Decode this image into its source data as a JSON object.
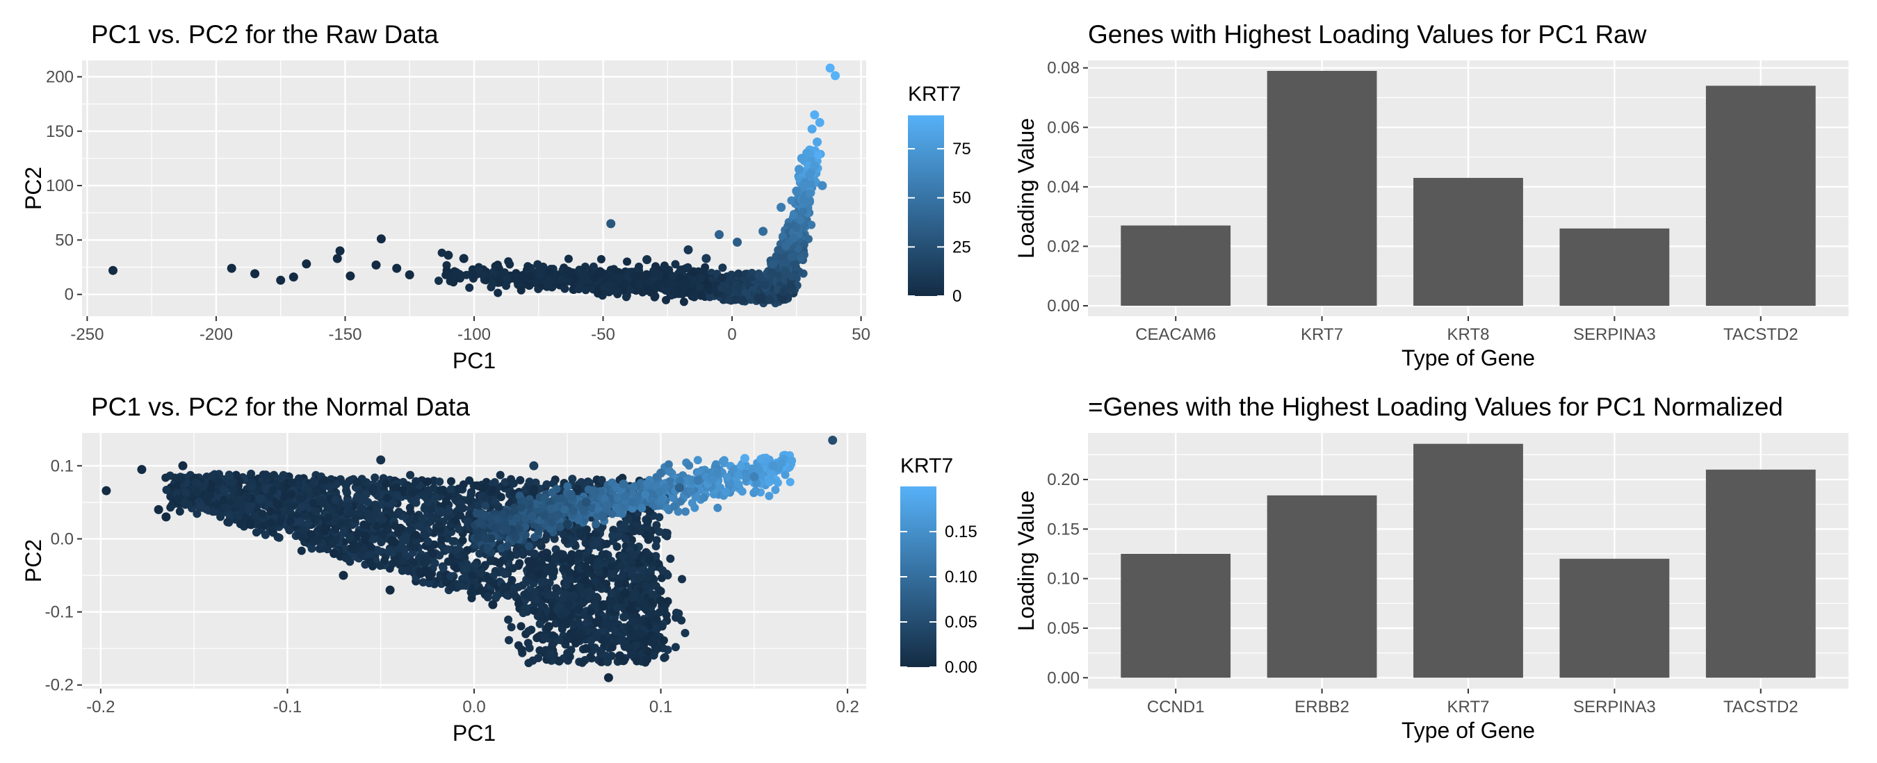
{
  "chart_data": [
    {
      "id": "raw-scatter",
      "type": "scatter",
      "title": "PC1 vs. PC2 for the Raw Data",
      "xlabel": "PC1",
      "ylabel": "PC2",
      "xlim": [
        -252,
        52
      ],
      "ylim": [
        -20,
        215
      ],
      "xticks": [
        -250,
        -200,
        -150,
        -100,
        -50,
        0,
        50
      ],
      "yticks": [
        0,
        50,
        100,
        150,
        200
      ],
      "legend": {
        "title": "KRT7",
        "ticks": [
          0,
          25,
          50,
          75
        ],
        "range": [
          0,
          92
        ],
        "placement": "right"
      },
      "color_low": "#132B43",
      "color_high": "#56B1F7",
      "points": [
        {
          "x": -240,
          "y": 22,
          "c": 0
        },
        {
          "x": -194,
          "y": 24,
          "c": 0
        },
        {
          "x": -185,
          "y": 19,
          "c": 0
        },
        {
          "x": -175,
          "y": 13,
          "c": 0
        },
        {
          "x": -170,
          "y": 16,
          "c": 0
        },
        {
          "x": -165,
          "y": 28,
          "c": 0
        },
        {
          "x": -152,
          "y": 40,
          "c": 0
        },
        {
          "x": -153,
          "y": 33,
          "c": 0
        },
        {
          "x": -148,
          "y": 17,
          "c": 0
        },
        {
          "x": -136,
          "y": 51,
          "c": 0
        },
        {
          "x": -138,
          "y": 27,
          "c": 0
        },
        {
          "x": -130,
          "y": 24,
          "c": 0
        },
        {
          "x": -125,
          "y": 18,
          "c": 0
        },
        {
          "x": -110,
          "y": 36,
          "c": 2
        },
        {
          "x": -104,
          "y": 33,
          "c": 1
        },
        {
          "x": -47,
          "y": 65,
          "c": 30
        },
        {
          "x": -33,
          "y": 32,
          "c": 4
        },
        {
          "x": -17,
          "y": 41,
          "c": 8
        },
        {
          "x": -10,
          "y": 33,
          "c": 10
        },
        {
          "x": -5,
          "y": 55,
          "c": 38
        },
        {
          "x": 2,
          "y": 48,
          "c": 34
        },
        {
          "x": 12,
          "y": 58,
          "c": 45
        },
        {
          "x": 19,
          "y": 80,
          "c": 55
        },
        {
          "x": 25,
          "y": 95,
          "c": 62
        },
        {
          "x": 28,
          "y": 100,
          "c": 68
        },
        {
          "x": 30,
          "y": 110,
          "c": 72
        },
        {
          "x": 32,
          "y": 118,
          "c": 76
        },
        {
          "x": 26,
          "y": 115,
          "c": 73
        },
        {
          "x": 29,
          "y": 130,
          "c": 80
        },
        {
          "x": 33,
          "y": 140,
          "c": 84
        },
        {
          "x": 31,
          "y": 152,
          "c": 86
        },
        {
          "x": 34,
          "y": 158,
          "c": 88
        },
        {
          "x": 32,
          "y": 165,
          "c": 90
        },
        {
          "x": 27,
          "y": 125,
          "c": 78
        },
        {
          "x": 35,
          "y": 100,
          "c": 66
        },
        {
          "x": 30,
          "y": 85,
          "c": 60
        },
        {
          "x": 38,
          "y": 208,
          "c": 92
        },
        {
          "x": 40,
          "y": 201,
          "c": 92
        }
      ]
    },
    {
      "id": "raw-bar",
      "type": "bar",
      "title": "Genes with Highest Loading Values for PC1 Raw",
      "xlabel": "Type of Gene",
      "ylabel": "Loading Value",
      "categories": [
        "CEACAM6",
        "KRT7",
        "KRT8",
        "SERPINA3",
        "TACSTD2"
      ],
      "values": [
        0.027,
        0.079,
        0.043,
        0.026,
        0.074
      ],
      "ylim": [
        -0.0035,
        0.0825
      ],
      "yticks": [
        "0.00",
        "0.02",
        "0.04",
        "0.06",
        "0.08"
      ],
      "bar_color": "#595959"
    },
    {
      "id": "norm-scatter",
      "type": "scatter",
      "title": "PC1 vs. PC2 for the Normal Data",
      "xlabel": "PC1",
      "ylabel": "PC2",
      "xlim": [
        -0.21,
        0.21
      ],
      "ylim": [
        -0.205,
        0.145
      ],
      "xticks": [
        "-0.2",
        "-0.1",
        "0.0",
        "0.1",
        "0.2"
      ],
      "yticks": [
        "-0.2",
        "-0.1",
        "0.0",
        "0.1"
      ],
      "legend": {
        "title": "KRT7",
        "ticks": [
          "0.00",
          "0.05",
          "0.10",
          "0.15"
        ],
        "range": [
          0,
          0.2
        ],
        "placement": "right"
      },
      "color_low": "#132B43",
      "color_high": "#56B1F7",
      "points": [
        {
          "x": -0.197,
          "y": 0.066,
          "c": 0.0
        },
        {
          "x": -0.178,
          "y": 0.095,
          "c": 0.0
        },
        {
          "x": -0.156,
          "y": 0.1,
          "c": 0.0
        },
        {
          "x": -0.169,
          "y": 0.04,
          "c": 0.0
        },
        {
          "x": -0.165,
          "y": 0.03,
          "c": 0.0
        },
        {
          "x": -0.05,
          "y": 0.108,
          "c": 0.01
        },
        {
          "x": 0.032,
          "y": 0.1,
          "c": 0.03
        },
        {
          "x": 0.192,
          "y": 0.135,
          "c": 0.05
        },
        {
          "x": 0.145,
          "y": 0.11,
          "c": 0.19
        },
        {
          "x": 0.17,
          "y": 0.107,
          "c": 0.18
        },
        {
          "x": 0.16,
          "y": 0.1,
          "c": 0.16
        },
        {
          "x": 0.13,
          "y": 0.09,
          "c": 0.14
        },
        {
          "x": 0.12,
          "y": 0.08,
          "c": 0.12
        },
        {
          "x": 0.15,
          "y": 0.085,
          "c": 0.13
        },
        {
          "x": 0.1,
          "y": 0.09,
          "c": 0.11
        },
        {
          "x": 0.11,
          "y": 0.07,
          "c": 0.08
        },
        {
          "x": 0.08,
          "y": 0.075,
          "c": 0.1
        },
        {
          "x": 0.06,
          "y": 0.05,
          "c": 0.06
        },
        {
          "x": 0.085,
          "y": -0.08,
          "c": 0.01
        },
        {
          "x": 0.078,
          "y": -0.16,
          "c": 0.0
        },
        {
          "x": 0.072,
          "y": -0.19,
          "c": 0.0
        },
        {
          "x": 0.1,
          "y": -0.085,
          "c": 0.0
        },
        {
          "x": 0.06,
          "y": -0.15,
          "c": 0.0
        },
        {
          "x": -0.07,
          "y": -0.05,
          "c": 0.0
        },
        {
          "x": -0.12,
          "y": 0.02,
          "c": 0.0
        },
        {
          "x": -0.075,
          "y": -0.02,
          "c": 0.0
        },
        {
          "x": -0.045,
          "y": -0.07,
          "c": 0.0
        },
        {
          "x": 0.01,
          "y": -0.09,
          "c": 0.0
        },
        {
          "x": 0.04,
          "y": -0.12,
          "c": 0.0
        },
        {
          "x": 0.05,
          "y": 0.02,
          "c": 0.03
        }
      ]
    },
    {
      "id": "norm-bar",
      "type": "bar",
      "title": "=Genes with the Highest Loading Values for PC1 Normalized",
      "xlabel": "Type of Gene",
      "ylabel": "Loading Value",
      "categories": [
        "CCND1",
        "ERBB2",
        "KRT7",
        "SERPINA3",
        "TACSTD2"
      ],
      "values": [
        0.125,
        0.184,
        0.236,
        0.12,
        0.21
      ],
      "ylim": [
        -0.011,
        0.247
      ],
      "yticks": [
        "0.00",
        "0.05",
        "0.10",
        "0.15",
        "0.20"
      ],
      "bar_color": "#595959"
    }
  ]
}
